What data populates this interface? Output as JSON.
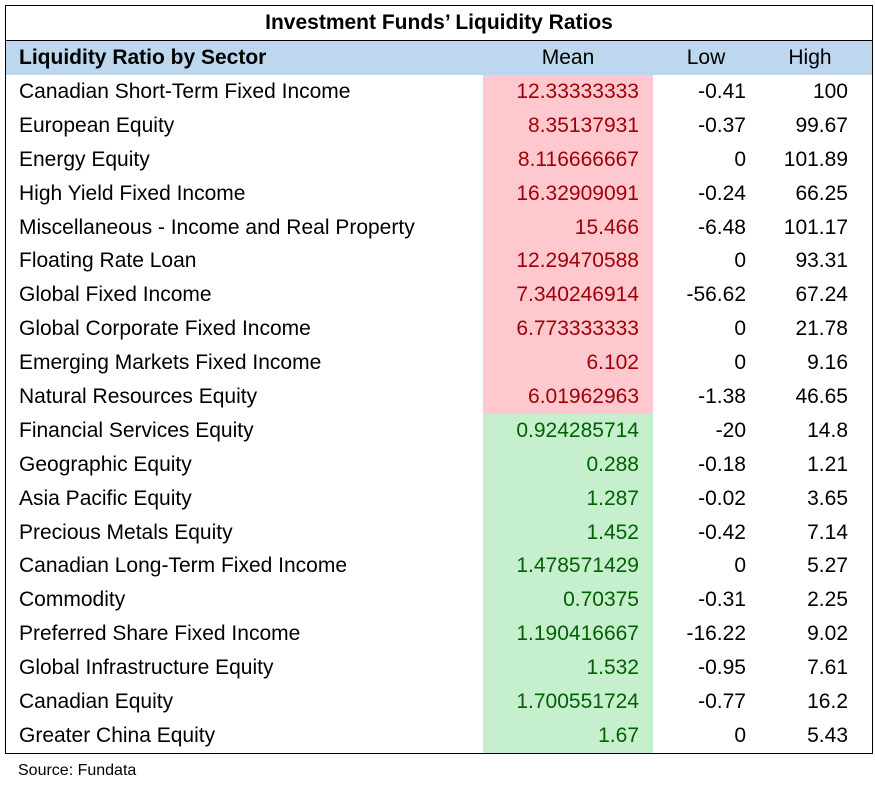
{
  "title": "Investment Funds’ Liquidity Ratios",
  "headers": {
    "sector": "Liquidity Ratio by Sector",
    "mean": "Mean",
    "low": "Low",
    "high": "High"
  },
  "colors": {
    "header_bg": "#BDD7EE",
    "high_fill": "#FFC7CE",
    "high_text": "#9C0006",
    "low_fill": "#C6EFCE",
    "low_text": "#006100"
  },
  "rows": [
    {
      "sector": "Canadian Short-Term Fixed Income",
      "mean": "12.33333333",
      "low": "-0.41",
      "high": "100",
      "flag": "high"
    },
    {
      "sector": "European Equity",
      "mean": "8.35137931",
      "low": "-0.37",
      "high": "99.67",
      "flag": "high"
    },
    {
      "sector": "Energy Equity",
      "mean": "8.116666667",
      "low": "0",
      "high": "101.89",
      "flag": "high"
    },
    {
      "sector": "High Yield Fixed Income",
      "mean": "16.32909091",
      "low": "-0.24",
      "high": "66.25",
      "flag": "high"
    },
    {
      "sector": "Miscellaneous - Income and Real Property",
      "mean": "15.466",
      "low": "-6.48",
      "high": "101.17",
      "flag": "high"
    },
    {
      "sector": "Floating Rate Loan",
      "mean": "12.29470588",
      "low": "0",
      "high": "93.31",
      "flag": "high"
    },
    {
      "sector": "Global Fixed Income",
      "mean": "7.340246914",
      "low": "-56.62",
      "high": "67.24",
      "flag": "high"
    },
    {
      "sector": "Global Corporate Fixed Income",
      "mean": "6.773333333",
      "low": "0",
      "high": "21.78",
      "flag": "high"
    },
    {
      "sector": "Emerging Markets Fixed Income",
      "mean": "6.102",
      "low": "0",
      "high": "9.16",
      "flag": "high"
    },
    {
      "sector": "Natural Resources Equity",
      "mean": "6.01962963",
      "low": "-1.38",
      "high": "46.65",
      "flag": "high"
    },
    {
      "sector": "Financial Services Equity",
      "mean": "0.924285714",
      "low": "-20",
      "high": "14.8",
      "flag": "low"
    },
    {
      "sector": "Geographic Equity",
      "mean": "0.288",
      "low": "-0.18",
      "high": "1.21",
      "flag": "low"
    },
    {
      "sector": "Asia Pacific Equity",
      "mean": "1.287",
      "low": "-0.02",
      "high": "3.65",
      "flag": "low"
    },
    {
      "sector": "Precious Metals Equity",
      "mean": "1.452",
      "low": "-0.42",
      "high": "7.14",
      "flag": "low"
    },
    {
      "sector": "Canadian Long-Term Fixed Income",
      "mean": "1.478571429",
      "low": "0",
      "high": "5.27",
      "flag": "low"
    },
    {
      "sector": "Commodity",
      "mean": "0.70375",
      "low": "-0.31",
      "high": "2.25",
      "flag": "low"
    },
    {
      "sector": "Preferred Share Fixed Income",
      "mean": "1.190416667",
      "low": "-16.22",
      "high": "9.02",
      "flag": "low"
    },
    {
      "sector": "Global Infrastructure Equity",
      "mean": "1.532",
      "low": "-0.95",
      "high": "7.61",
      "flag": "low"
    },
    {
      "sector": "Canadian Equity",
      "mean": "1.700551724",
      "low": "-0.77",
      "high": "16.2",
      "flag": "low"
    },
    {
      "sector": "Greater China Equity",
      "mean": "1.67",
      "low": "0",
      "high": "5.43",
      "flag": "low"
    }
  ],
  "source": "Source: Fundata"
}
